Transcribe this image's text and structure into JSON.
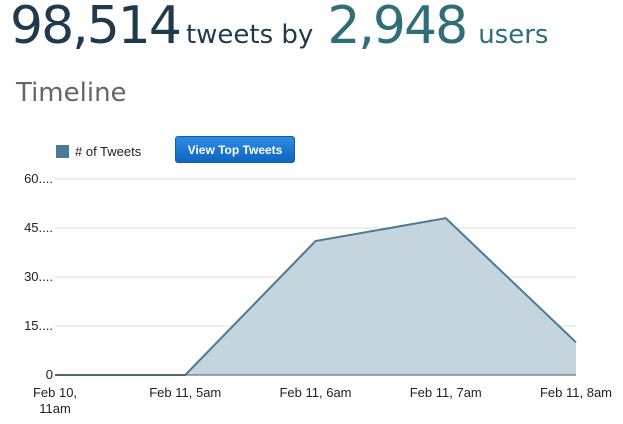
{
  "header": {
    "tweet_count": "98,514",
    "tweets_by_label": "tweets by",
    "user_count": "2,948",
    "users_label": "users"
  },
  "section": {
    "title": "Timeline"
  },
  "toolbar": {
    "view_top_tweets_label": "View Top Tweets"
  },
  "colors": {
    "series_line": "#4a7a96",
    "series_fill": "#c5d5de",
    "legend_swatch": "#4a7a96",
    "button": "#1a72cf",
    "grid": "#dddddd"
  },
  "chart_data": {
    "type": "area",
    "x": [
      "Feb 10, 11am",
      "Feb 11, 5am",
      "Feb 11, 6am",
      "Feb 11, 7am",
      "Feb 11, 8am"
    ],
    "tick_labels": [
      [
        "Feb 10,",
        "11am"
      ],
      [
        "Feb 11, 5am"
      ],
      [
        "Feb 11, 6am"
      ],
      [
        "Feb 11, 7am"
      ],
      [
        "Feb 11, 8am"
      ]
    ],
    "series": [
      {
        "name": "# of Tweets",
        "values": [
          0,
          0,
          41,
          48,
          10
        ]
      }
    ],
    "y_ticks": [
      0,
      15,
      30,
      45,
      60
    ],
    "y_tick_labels": [
      "0",
      "15....",
      "30....",
      "45....",
      "60...."
    ],
    "ylim": [
      0,
      60
    ],
    "grid": true,
    "legend_position": "top-left"
  }
}
